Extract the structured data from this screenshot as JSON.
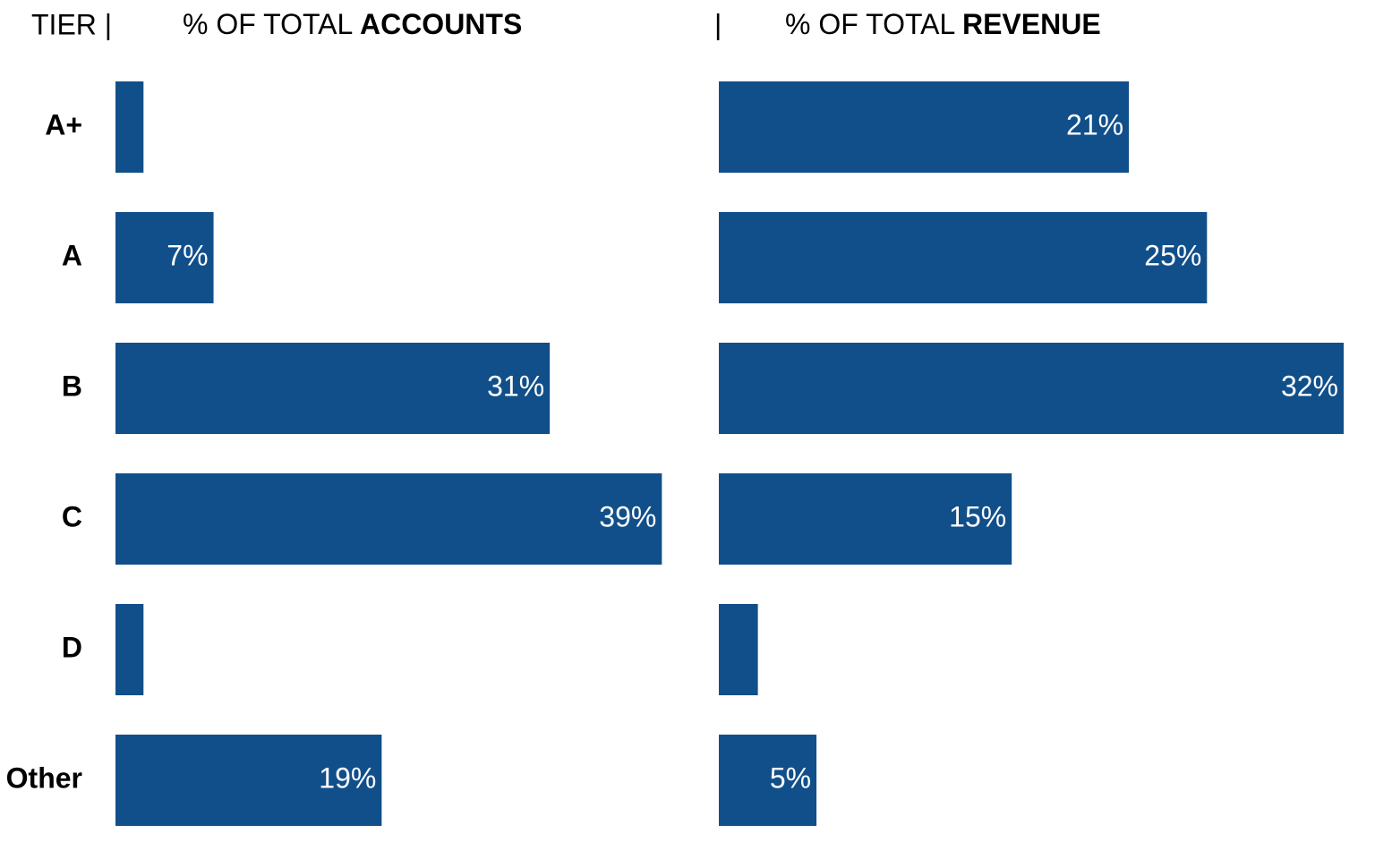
{
  "chart_data": [
    {
      "type": "bar",
      "orientation": "horizontal",
      "category_header": "TIER |",
      "title_prefix": "% OF TOTAL",
      "title_emphasis": "ACCOUNTS",
      "categories": [
        "A+",
        "A",
        "B",
        "C",
        "D",
        "Other"
      ],
      "values": [
        2,
        7,
        31,
        39,
        2,
        19
      ],
      "value_labels": [
        null,
        "7%",
        "31%",
        "39%",
        null,
        "19%"
      ],
      "color": "#114f8a",
      "xlim": [
        0,
        40
      ]
    },
    {
      "type": "bar",
      "orientation": "horizontal",
      "separator": "|",
      "title_prefix": "% OF TOTAL",
      "title_emphasis": "REVENUE",
      "values": [
        21,
        25,
        32,
        15,
        2,
        5
      ],
      "value_labels": [
        "21%",
        "25%",
        "32%",
        "15%",
        null,
        "5%"
      ],
      "color": "#114f8a",
      "xlim": [
        0,
        32
      ]
    }
  ]
}
